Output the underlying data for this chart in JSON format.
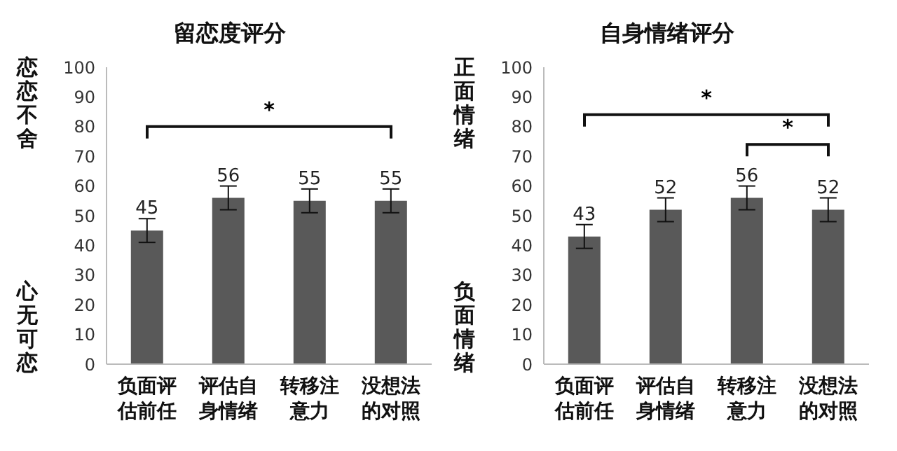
{
  "chart_data": [
    {
      "type": "bar",
      "title": "留恋度评分",
      "ylabel": "恋恋不舍",
      "annotations": [
        "心无可恋",
        "*"
      ],
      "categories": [
        "负面评估前任",
        "评估自身情绪",
        "转移注意力",
        "没想法的对照"
      ],
      "values": [
        45,
        56,
        55,
        55
      ],
      "errors": [
        4,
        4,
        4,
        4
      ],
      "color": "#595959",
      "ylim": [
        0,
        100
      ],
      "yticks": [
        0,
        10,
        20,
        30,
        40,
        50,
        60,
        70,
        80,
        90,
        100
      ],
      "data_labels": true,
      "grid": false,
      "legend": false
    },
    {
      "type": "bar",
      "title": "自身情绪评分",
      "ylabel": "正面情绪",
      "annotations": [
        "负面情绪",
        "*",
        "*"
      ],
      "categories": [
        "负面评估前任",
        "评估自身情绪",
        "转移注意力",
        "没想法的对照"
      ],
      "values": [
        43,
        52,
        56,
        52
      ],
      "errors": [
        4,
        4,
        4,
        4
      ],
      "color": "#595959",
      "ylim": [
        0,
        100
      ],
      "yticks": [
        0,
        10,
        20,
        30,
        40,
        50,
        60,
        70,
        80,
        90,
        100
      ],
      "data_labels": true,
      "grid": false,
      "legend": false
    }
  ]
}
